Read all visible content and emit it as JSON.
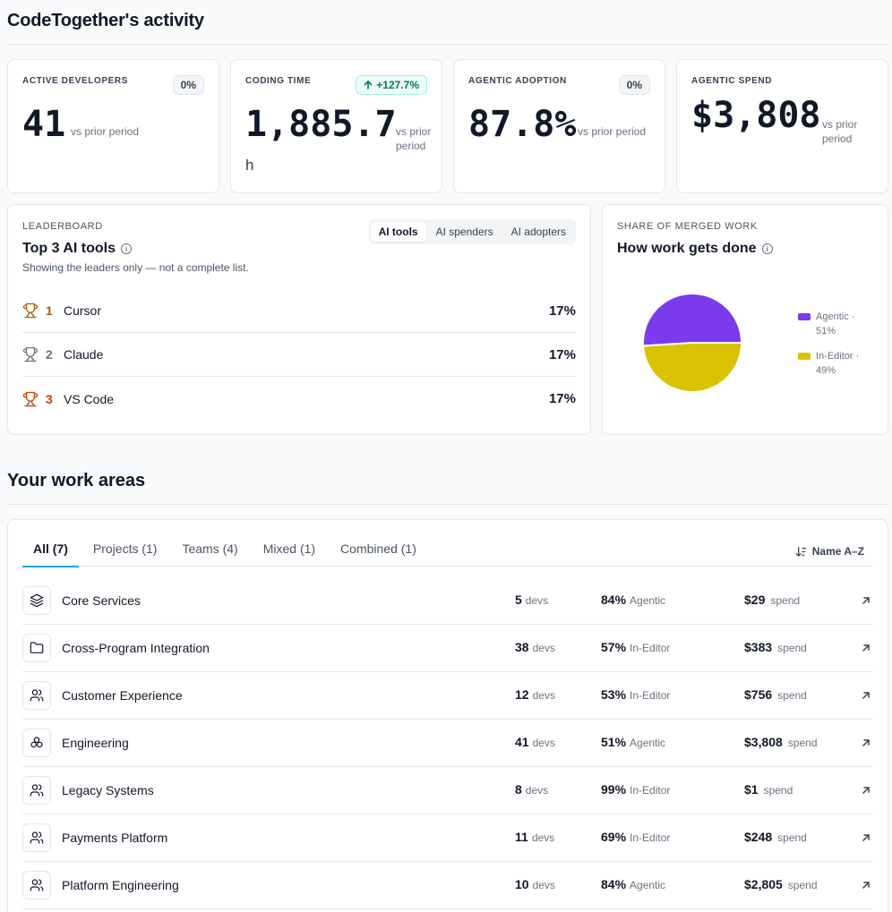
{
  "header": {
    "title": "CodeTogether's activity"
  },
  "stats": [
    {
      "label": "ACTIVE DEVELOPERS",
      "badge": "0%",
      "value": "41",
      "sub": "vs prior period"
    },
    {
      "label": "CODING TIME",
      "badge": "+127.7%",
      "value": "1,885.7",
      "unit": "h",
      "sub": "vs prior period"
    },
    {
      "label": "AGENTIC ADOPTION",
      "badge": "0%",
      "value": "87.8%",
      "sub": "vs prior period"
    },
    {
      "label": "AGENTIC SPEND",
      "value": "$3,808",
      "sub": "vs prior period"
    }
  ],
  "leaderboard": {
    "section": "LEADERBOARD",
    "title": "Top 3 AI tools",
    "subtitle": "Showing the leaders only — not a complete list.",
    "tabs": [
      "AI tools",
      "AI spenders",
      "AI adopters"
    ],
    "rows": [
      {
        "rank": "1",
        "name": "Cursor",
        "pct": "17%",
        "color": "#a16207"
      },
      {
        "rank": "2",
        "name": "Claude",
        "pct": "17%",
        "color": "#6b7280"
      },
      {
        "rank": "3",
        "name": "VS Code",
        "pct": "17%",
        "color": "#c2410c"
      }
    ]
  },
  "share": {
    "section": "SHARE OF MERGED WORK",
    "title": "How work gets done",
    "chart_data": {
      "type": "pie",
      "categories": [
        "Agentic",
        "In-Editor"
      ],
      "values": [
        51,
        49
      ],
      "colors": [
        "#7c3aed",
        "#d9c200"
      ],
      "legend": "right"
    },
    "legend": [
      {
        "line1": "Agentic ·",
        "line2": "51%"
      },
      {
        "line1": "In-Editor ·",
        "line2": "49%"
      }
    ]
  },
  "work_areas": {
    "title": "Your work areas",
    "tabs": [
      "All (7)",
      "Projects (1)",
      "Teams (4)",
      "Mixed (1)",
      "Combined (1)"
    ],
    "sort": "Name A–Z",
    "devs_unit": "devs",
    "spend_unit": "spend",
    "rows": [
      {
        "icon": "layers-icon",
        "name": "Core Services",
        "devs": "5",
        "pct": "84%",
        "mode": "Agentic",
        "spend": "$29"
      },
      {
        "icon": "folder-icon",
        "name": "Cross-Program Integration",
        "devs": "38",
        "pct": "57%",
        "mode": "In-Editor",
        "spend": "$383"
      },
      {
        "icon": "users-icon",
        "name": "Customer Experience",
        "devs": "12",
        "pct": "53%",
        "mode": "In-Editor",
        "spend": "$756"
      },
      {
        "icon": "boxes-icon",
        "name": "Engineering",
        "devs": "41",
        "pct": "51%",
        "mode": "Agentic",
        "spend": "$3,808"
      },
      {
        "icon": "users-icon",
        "name": "Legacy Systems",
        "devs": "8",
        "pct": "99%",
        "mode": "In-Editor",
        "spend": "$1"
      },
      {
        "icon": "users-icon",
        "name": "Payments Platform",
        "devs": "11",
        "pct": "69%",
        "mode": "In-Editor",
        "spend": "$248"
      },
      {
        "icon": "users-icon",
        "name": "Platform Engineering",
        "devs": "10",
        "pct": "84%",
        "mode": "Agentic",
        "spend": "$2,805"
      }
    ]
  }
}
